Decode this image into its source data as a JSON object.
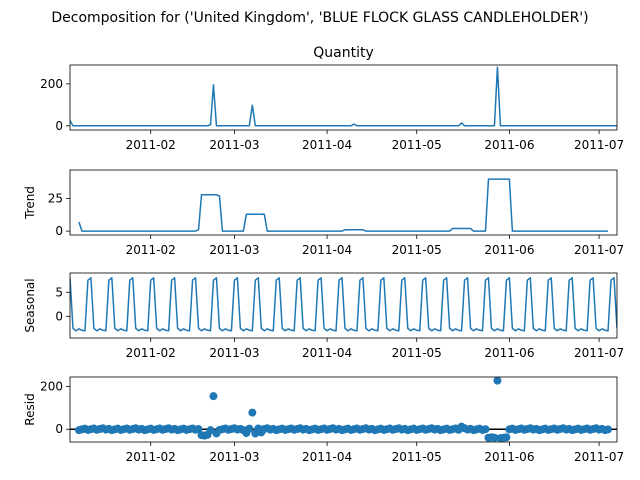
{
  "figure": {
    "suptitle": "Decomposition for ('United Kingdom', 'BLUE FLOCK GLASS CANDLEHOLDER')"
  },
  "chart_data": [
    {
      "type": "line",
      "title": "Quantity",
      "ylabel": "",
      "color": "#1f77b4",
      "x_range": [
        "2011-01-05",
        "2011-07-07"
      ],
      "x_ticks": [
        "2011-02",
        "2011-03",
        "2011-04",
        "2011-05",
        "2011-06",
        "2011-07"
      ],
      "ylim": [
        -20,
        290
      ],
      "y_ticks": [
        0,
        200
      ],
      "series": [
        {
          "x": [
            "2011-01-05",
            "2011-01-06",
            "2011-01-26",
            "2011-02-20",
            "2011-02-21",
            "2011-02-22",
            "2011-02-23",
            "2011-03-06",
            "2011-03-07",
            "2011-03-08",
            "2011-03-09",
            "2011-04-09",
            "2011-04-10",
            "2011-04-11",
            "2011-05-15",
            "2011-05-16",
            "2011-05-17",
            "2011-05-27",
            "2011-05-28",
            "2011-05-29",
            "2011-07-07"
          ],
          "y": [
            25,
            0,
            0,
            0,
            5,
            195,
            0,
            0,
            98,
            0,
            0,
            0,
            8,
            0,
            0,
            14,
            0,
            0,
            280,
            0,
            0
          ]
        }
      ]
    },
    {
      "type": "line",
      "title": "",
      "ylabel": "Trend",
      "color": "#1f77b4",
      "x_range": [
        "2011-01-05",
        "2011-07-07"
      ],
      "x_ticks": [
        "2011-02",
        "2011-03",
        "2011-04",
        "2011-05",
        "2011-06",
        "2011-07"
      ],
      "ylim": [
        -3,
        47
      ],
      "y_ticks": [
        0,
        25
      ],
      "series": [
        {
          "x": [
            "2011-01-08",
            "2011-01-09",
            "2011-02-16",
            "2011-02-17",
            "2011-02-18",
            "2011-02-23",
            "2011-02-24",
            "2011-02-25",
            "2011-03-04",
            "2011-03-05",
            "2011-03-11",
            "2011-03-12",
            "2011-04-06",
            "2011-04-07",
            "2011-04-13",
            "2011-04-14",
            "2011-05-12",
            "2011-05-13",
            "2011-05-19",
            "2011-05-20",
            "2011-05-24",
            "2011-05-25",
            "2011-06-01",
            "2011-06-02",
            "2011-07-04"
          ],
          "y": [
            7,
            0,
            0,
            1,
            28,
            28,
            27,
            0,
            0,
            13,
            13,
            0,
            0,
            1,
            1,
            0,
            0,
            2,
            2,
            0,
            0,
            40,
            40,
            0,
            0
          ]
        }
      ]
    },
    {
      "type": "line",
      "title": "",
      "ylabel": "Seasonal",
      "color": "#1f77b4",
      "x_range": [
        "2011-01-05",
        "2011-07-07"
      ],
      "x_ticks": [
        "2011-02",
        "2011-03",
        "2011-04",
        "2011-05",
        "2011-06",
        "2011-07"
      ],
      "ylim": [
        -4.5,
        9
      ],
      "y_ticks": [
        0,
        5
      ],
      "period_days": 7,
      "pattern": [
        8,
        -2.5,
        -3,
        -2.6,
        -2.9,
        -3,
        7.5
      ],
      "series": [
        {
          "x_start": "2011-01-05",
          "x_end": "2011-07-07"
        }
      ]
    },
    {
      "type": "scatter",
      "title": "",
      "ylabel": "Resid",
      "color": "#1f77b4",
      "x_range": [
        "2011-01-05",
        "2011-07-07"
      ],
      "x_ticks": [
        "2011-02",
        "2011-03",
        "2011-04",
        "2011-05",
        "2011-06",
        "2011-07"
      ],
      "ylim": [
        -60,
        245
      ],
      "y_ticks": [
        0,
        200
      ],
      "baseline": 0,
      "series": [
        {
          "x_start": "2011-01-08",
          "x_end": "2011-07-04",
          "base": 0,
          "outliers": [
            {
              "x": "2011-02-18",
              "y": -28
            },
            {
              "x": "2011-02-19",
              "y": -30
            },
            {
              "x": "2011-02-20",
              "y": -26
            },
            {
              "x": "2011-02-22",
              "y": 155
            },
            {
              "x": "2011-02-23",
              "y": -20
            },
            {
              "x": "2011-03-05",
              "y": -18
            },
            {
              "x": "2011-03-07",
              "y": 78
            },
            {
              "x": "2011-03-08",
              "y": -20
            },
            {
              "x": "2011-03-10",
              "y": -15
            },
            {
              "x": "2011-05-16",
              "y": 12
            },
            {
              "x": "2011-05-25",
              "y": -40
            },
            {
              "x": "2011-05-26",
              "y": -38
            },
            {
              "x": "2011-05-27",
              "y": -40
            },
            {
              "x": "2011-05-28",
              "y": 228
            },
            {
              "x": "2011-05-29",
              "y": -42
            },
            {
              "x": "2011-05-30",
              "y": -40
            },
            {
              "x": "2011-05-31",
              "y": -38
            }
          ]
        }
      ]
    }
  ]
}
